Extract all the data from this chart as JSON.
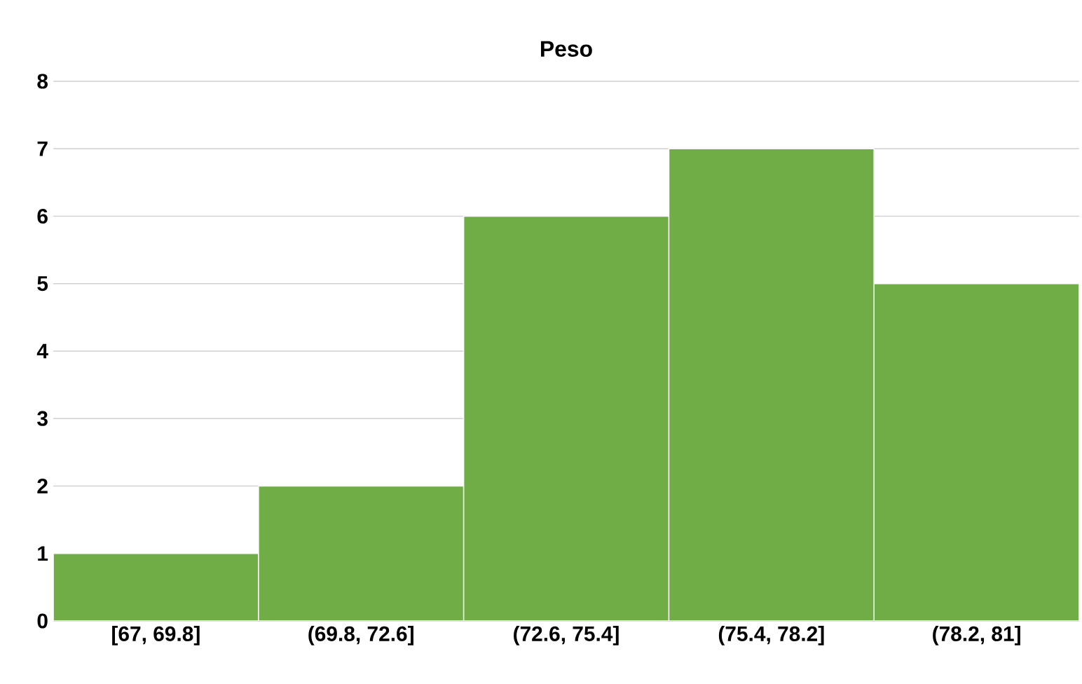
{
  "chart_data": {
    "type": "bar",
    "title": "Peso",
    "categories": [
      "[67, 69.8]",
      "(69.8, 72.6]",
      "(72.6, 75.4]",
      "(75.4, 78.2]",
      "(78.2, 81]"
    ],
    "values": [
      1,
      2,
      6,
      7,
      5
    ],
    "color": "#70ad47",
    "ylim": [
      0,
      8
    ],
    "yticks": [
      0,
      1,
      2,
      3,
      4,
      5,
      6,
      7,
      8
    ],
    "grid": "y"
  }
}
